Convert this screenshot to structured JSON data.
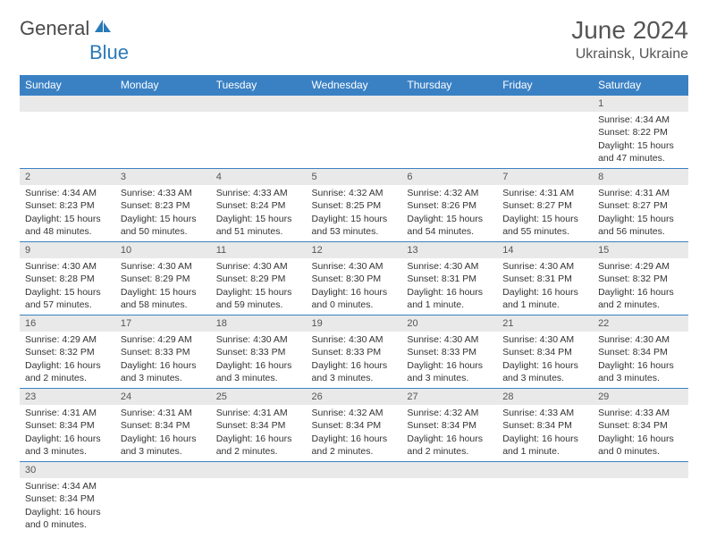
{
  "logo": {
    "word1": "General",
    "word2": "Blue"
  },
  "title": "June 2024",
  "location": "Ukrainsk, Ukraine",
  "colors": {
    "header_bg": "#3a81c4",
    "header_text": "#ffffff",
    "daynum_bg": "#e9e9e9",
    "cell_border": "#3a81c4",
    "title_text": "#555555",
    "logo_gray": "#4a4a4a",
    "logo_blue": "#2a7ab9"
  },
  "weekdays": [
    "Sunday",
    "Monday",
    "Tuesday",
    "Wednesday",
    "Thursday",
    "Friday",
    "Saturday"
  ],
  "weeks": [
    [
      {
        "empty": true
      },
      {
        "empty": true
      },
      {
        "empty": true
      },
      {
        "empty": true
      },
      {
        "empty": true
      },
      {
        "empty": true
      },
      {
        "day": "1",
        "sunrise": "Sunrise: 4:34 AM",
        "sunset": "Sunset: 8:22 PM",
        "daylight": "Daylight: 15 hours and 47 minutes."
      }
    ],
    [
      {
        "day": "2",
        "sunrise": "Sunrise: 4:34 AM",
        "sunset": "Sunset: 8:23 PM",
        "daylight": "Daylight: 15 hours and 48 minutes."
      },
      {
        "day": "3",
        "sunrise": "Sunrise: 4:33 AM",
        "sunset": "Sunset: 8:23 PM",
        "daylight": "Daylight: 15 hours and 50 minutes."
      },
      {
        "day": "4",
        "sunrise": "Sunrise: 4:33 AM",
        "sunset": "Sunset: 8:24 PM",
        "daylight": "Daylight: 15 hours and 51 minutes."
      },
      {
        "day": "5",
        "sunrise": "Sunrise: 4:32 AM",
        "sunset": "Sunset: 8:25 PM",
        "daylight": "Daylight: 15 hours and 53 minutes."
      },
      {
        "day": "6",
        "sunrise": "Sunrise: 4:32 AM",
        "sunset": "Sunset: 8:26 PM",
        "daylight": "Daylight: 15 hours and 54 minutes."
      },
      {
        "day": "7",
        "sunrise": "Sunrise: 4:31 AM",
        "sunset": "Sunset: 8:27 PM",
        "daylight": "Daylight: 15 hours and 55 minutes."
      },
      {
        "day": "8",
        "sunrise": "Sunrise: 4:31 AM",
        "sunset": "Sunset: 8:27 PM",
        "daylight": "Daylight: 15 hours and 56 minutes."
      }
    ],
    [
      {
        "day": "9",
        "sunrise": "Sunrise: 4:30 AM",
        "sunset": "Sunset: 8:28 PM",
        "daylight": "Daylight: 15 hours and 57 minutes."
      },
      {
        "day": "10",
        "sunrise": "Sunrise: 4:30 AM",
        "sunset": "Sunset: 8:29 PM",
        "daylight": "Daylight: 15 hours and 58 minutes."
      },
      {
        "day": "11",
        "sunrise": "Sunrise: 4:30 AM",
        "sunset": "Sunset: 8:29 PM",
        "daylight": "Daylight: 15 hours and 59 minutes."
      },
      {
        "day": "12",
        "sunrise": "Sunrise: 4:30 AM",
        "sunset": "Sunset: 8:30 PM",
        "daylight": "Daylight: 16 hours and 0 minutes."
      },
      {
        "day": "13",
        "sunrise": "Sunrise: 4:30 AM",
        "sunset": "Sunset: 8:31 PM",
        "daylight": "Daylight: 16 hours and 1 minute."
      },
      {
        "day": "14",
        "sunrise": "Sunrise: 4:30 AM",
        "sunset": "Sunset: 8:31 PM",
        "daylight": "Daylight: 16 hours and 1 minute."
      },
      {
        "day": "15",
        "sunrise": "Sunrise: 4:29 AM",
        "sunset": "Sunset: 8:32 PM",
        "daylight": "Daylight: 16 hours and 2 minutes."
      }
    ],
    [
      {
        "day": "16",
        "sunrise": "Sunrise: 4:29 AM",
        "sunset": "Sunset: 8:32 PM",
        "daylight": "Daylight: 16 hours and 2 minutes."
      },
      {
        "day": "17",
        "sunrise": "Sunrise: 4:29 AM",
        "sunset": "Sunset: 8:33 PM",
        "daylight": "Daylight: 16 hours and 3 minutes."
      },
      {
        "day": "18",
        "sunrise": "Sunrise: 4:30 AM",
        "sunset": "Sunset: 8:33 PM",
        "daylight": "Daylight: 16 hours and 3 minutes."
      },
      {
        "day": "19",
        "sunrise": "Sunrise: 4:30 AM",
        "sunset": "Sunset: 8:33 PM",
        "daylight": "Daylight: 16 hours and 3 minutes."
      },
      {
        "day": "20",
        "sunrise": "Sunrise: 4:30 AM",
        "sunset": "Sunset: 8:33 PM",
        "daylight": "Daylight: 16 hours and 3 minutes."
      },
      {
        "day": "21",
        "sunrise": "Sunrise: 4:30 AM",
        "sunset": "Sunset: 8:34 PM",
        "daylight": "Daylight: 16 hours and 3 minutes."
      },
      {
        "day": "22",
        "sunrise": "Sunrise: 4:30 AM",
        "sunset": "Sunset: 8:34 PM",
        "daylight": "Daylight: 16 hours and 3 minutes."
      }
    ],
    [
      {
        "day": "23",
        "sunrise": "Sunrise: 4:31 AM",
        "sunset": "Sunset: 8:34 PM",
        "daylight": "Daylight: 16 hours and 3 minutes."
      },
      {
        "day": "24",
        "sunrise": "Sunrise: 4:31 AM",
        "sunset": "Sunset: 8:34 PM",
        "daylight": "Daylight: 16 hours and 3 minutes."
      },
      {
        "day": "25",
        "sunrise": "Sunrise: 4:31 AM",
        "sunset": "Sunset: 8:34 PM",
        "daylight": "Daylight: 16 hours and 2 minutes."
      },
      {
        "day": "26",
        "sunrise": "Sunrise: 4:32 AM",
        "sunset": "Sunset: 8:34 PM",
        "daylight": "Daylight: 16 hours and 2 minutes."
      },
      {
        "day": "27",
        "sunrise": "Sunrise: 4:32 AM",
        "sunset": "Sunset: 8:34 PM",
        "daylight": "Daylight: 16 hours and 2 minutes."
      },
      {
        "day": "28",
        "sunrise": "Sunrise: 4:33 AM",
        "sunset": "Sunset: 8:34 PM",
        "daylight": "Daylight: 16 hours and 1 minute."
      },
      {
        "day": "29",
        "sunrise": "Sunrise: 4:33 AM",
        "sunset": "Sunset: 8:34 PM",
        "daylight": "Daylight: 16 hours and 0 minutes."
      }
    ],
    [
      {
        "day": "30",
        "sunrise": "Sunrise: 4:34 AM",
        "sunset": "Sunset: 8:34 PM",
        "daylight": "Daylight: 16 hours and 0 minutes."
      },
      {
        "empty": true
      },
      {
        "empty": true
      },
      {
        "empty": true
      },
      {
        "empty": true
      },
      {
        "empty": true
      },
      {
        "empty": true
      }
    ]
  ]
}
